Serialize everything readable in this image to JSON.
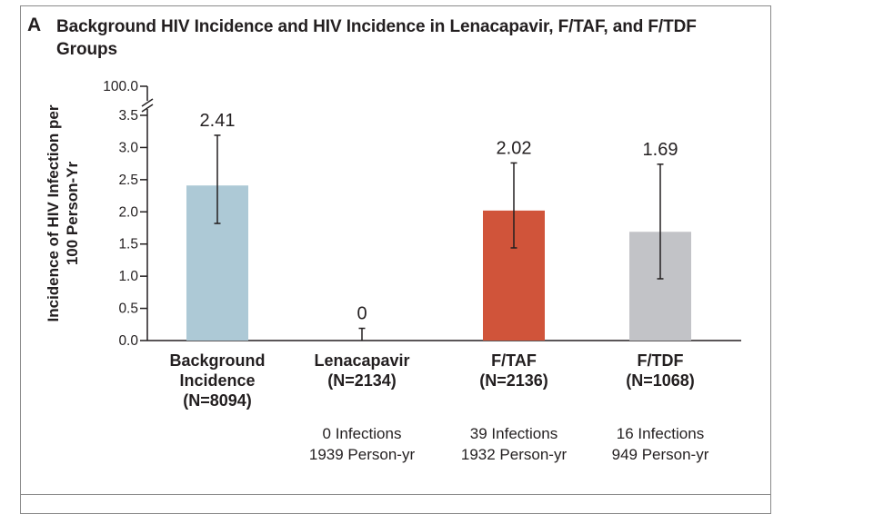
{
  "panel_letter": "A",
  "chart_data": {
    "type": "bar",
    "title": "Background HIV Incidence and HIV Incidence in Lenacapavir, F/TAF, and F/TDF Groups",
    "ylabel_lines": [
      "Incidence of HIV Infection per",
      "100 Person-Yr"
    ],
    "ylim": [
      0,
      3.5
    ],
    "axis_break_label": "100.0",
    "yticks": [
      0.0,
      0.5,
      1.0,
      1.5,
      2.0,
      2.5,
      3.0,
      3.5
    ],
    "ytick_labels": [
      "0.0",
      "0.5",
      "1.0",
      "1.5",
      "2.0",
      "2.5",
      "3.0",
      "3.5"
    ],
    "categories": [
      {
        "name": "Background Incidence",
        "label_lines": [
          "Background",
          "Incidence",
          "(N=8094)"
        ],
        "value": 2.41,
        "value_label": "2.41",
        "ci": [
          1.82,
          3.19
        ],
        "color": "#adc9d6",
        "note_lines": []
      },
      {
        "name": "Lenacapavir",
        "label_lines": [
          "Lenacapavir",
          "(N=2134)"
        ],
        "value": 0,
        "value_label": "0",
        "ci": [
          0.0,
          0.19
        ],
        "color": "#adc9d6",
        "note_lines": [
          "0 Infections",
          "1939 Person-yr"
        ]
      },
      {
        "name": "F/TAF",
        "label_lines": [
          "F/TAF",
          "(N=2136)"
        ],
        "value": 2.02,
        "value_label": "2.02",
        "ci": [
          1.44,
          2.76
        ],
        "color": "#d0543a",
        "note_lines": [
          "39 Infections",
          "1932 Person-yr"
        ]
      },
      {
        "name": "F/TDF",
        "label_lines": [
          "F/TDF",
          "(N=1068)"
        ],
        "value": 1.69,
        "value_label": "1.69",
        "ci": [
          0.96,
          2.74
        ],
        "color": "#c2c3c7",
        "note_lines": [
          "16 Infections",
          "949 Person-yr"
        ]
      }
    ],
    "grid": false,
    "legend": "none"
  }
}
